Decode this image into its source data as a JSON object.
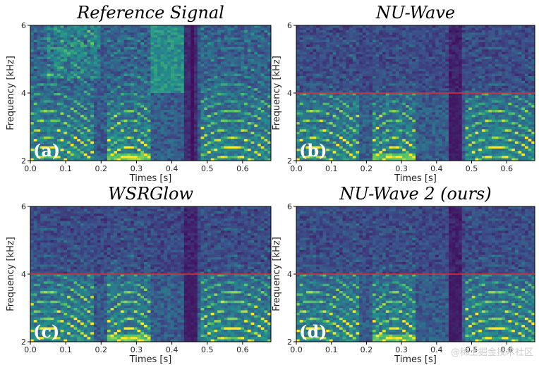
{
  "chart_data": [
    {
      "type": "heatmap",
      "title": "Reference Signal",
      "panel_label": "(a)",
      "xlabel": "Times [s]",
      "ylabel": "Frequency [kHz]",
      "xlim": [
        0.0,
        0.68
      ],
      "ylim": [
        2,
        6
      ],
      "xticks": [
        "0.0",
        "0.1",
        "0.2",
        "0.3",
        "0.4",
        "0.5",
        "0.6"
      ],
      "yticks": [
        "2",
        "4",
        "6"
      ],
      "cutoff_line_khz": null
    },
    {
      "type": "heatmap",
      "title": "NU-Wave",
      "panel_label": "(b)",
      "xlabel": "Times [s]",
      "ylabel": "Frequency [kHz]",
      "xlim": [
        0.0,
        0.68
      ],
      "ylim": [
        2,
        6
      ],
      "xticks": [
        "0.0",
        "0.1",
        "0.2",
        "0.3",
        "0.4",
        "0.5",
        "0.6"
      ],
      "yticks": [
        "2",
        "4",
        "6"
      ],
      "cutoff_line_khz": 4
    },
    {
      "type": "heatmap",
      "title": "WSRGlow",
      "panel_label": "(c)",
      "xlabel": "Times [s]",
      "ylabel": "Frequency [kHz]",
      "xlim": [
        0.0,
        0.68
      ],
      "ylim": [
        2,
        6
      ],
      "xticks": [
        "0.0",
        "0.1",
        "0.2",
        "0.3",
        "0.4",
        "0.5",
        "0.6"
      ],
      "yticks": [
        "2",
        "4",
        "6"
      ],
      "cutoff_line_khz": 4
    },
    {
      "type": "heatmap",
      "title": "NU-Wave 2 (ours)",
      "panel_label": "(d)",
      "xlabel": "Times [s]",
      "ylabel": "Frequency [kHz]",
      "xlim": [
        0.0,
        0.68
      ],
      "ylim": [
        2,
        6
      ],
      "xticks": [
        "0.0",
        "0.1",
        "0.2",
        "0.3",
        "0.4",
        "0.5",
        "0.6"
      ],
      "yticks": [
        "2",
        "4",
        "6"
      ],
      "cutoff_line_khz": 4
    }
  ],
  "colors": {
    "colormap": [
      "#440154",
      "#3b528b",
      "#21918c",
      "#5ec962",
      "#fde725"
    ],
    "cutoff_line": "#e0302a"
  },
  "watermark": "@稀土掘金技术社区"
}
